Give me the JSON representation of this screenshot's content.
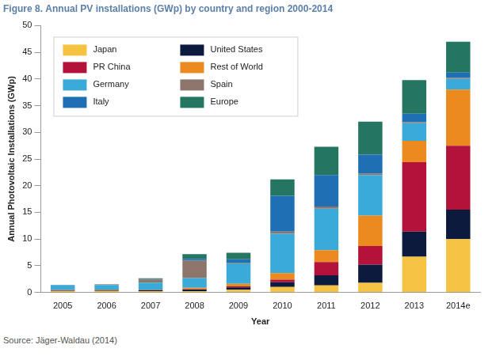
{
  "chart_data": {
    "type": "bar",
    "title": "Figure 8. Annual PV installations (GWp) by country and region 2000-2014",
    "x_label": "Year",
    "y_label": "Annual Photovoltaic Installations (GWp)",
    "source": "Source: Jäger-Waldau (2014)",
    "categories": [
      "2005",
      "2006",
      "2007",
      "2008",
      "2009",
      "2010",
      "2011",
      "2012",
      "2013",
      "2014e"
    ],
    "series": [
      {
        "name": "Japan",
        "color": "#f5c242",
        "values": [
          0.29,
          0.29,
          0.21,
          0.23,
          0.48,
          1.0,
          1.3,
          1.8,
          6.7,
          10.0
        ]
      },
      {
        "name": "United States",
        "color": "#0b1a3d",
        "values": [
          0.11,
          0.14,
          0.2,
          0.3,
          0.48,
          0.9,
          1.9,
          3.4,
          4.7,
          5.5
        ]
      },
      {
        "name": "PR China",
        "color": "#b3123b",
        "values": [
          0.01,
          0.01,
          0.02,
          0.05,
          0.16,
          0.5,
          2.5,
          3.5,
          13.0,
          12.0
        ]
      },
      {
        "name": "Rest of World",
        "color": "#ea8a1f",
        "values": [
          0.05,
          0.1,
          0.1,
          0.3,
          0.5,
          1.2,
          2.2,
          5.7,
          4.0,
          10.5
        ]
      },
      {
        "name": "Germany",
        "color": "#3aaad8",
        "values": [
          0.9,
          0.85,
          1.3,
          1.8,
          3.8,
          7.4,
          7.8,
          7.6,
          3.3,
          2.0
        ]
      },
      {
        "name": "Spain",
        "color": "#8c756b",
        "values": [
          0.02,
          0.1,
          0.6,
          3.3,
          0.1,
          0.4,
          0.4,
          0.3,
          0.2,
          0.2
        ]
      },
      {
        "name": "Italy",
        "color": "#1f6fb5",
        "values": [
          0.0,
          0.01,
          0.07,
          0.3,
          0.7,
          6.7,
          5.9,
          3.5,
          1.6,
          1.0
        ]
      },
      {
        "name": "Europe",
        "color": "#257563",
        "values": [
          0.05,
          0.05,
          0.15,
          0.9,
          1.2,
          3.1,
          5.3,
          6.2,
          6.3,
          5.8
        ]
      }
    ],
    "ylim": [
      0,
      50
    ],
    "yticks": [
      0,
      5,
      10,
      15,
      20,
      25,
      30,
      35,
      40,
      45,
      50
    ],
    "stacked": true,
    "grid": false,
    "legend": "upper left"
  }
}
